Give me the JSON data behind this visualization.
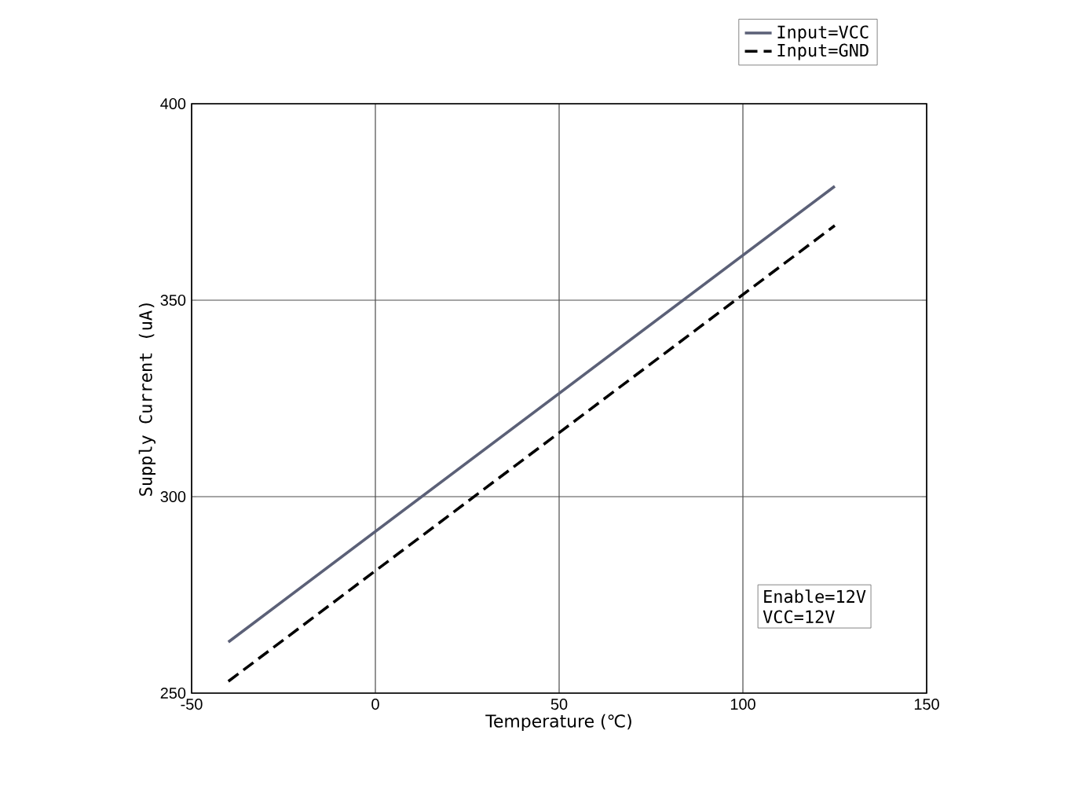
{
  "chart_data": {
    "type": "line",
    "xlabel": "Temperature (℃)",
    "ylabel": "Supply Current (uA)",
    "x": [
      -40,
      125
    ],
    "series": [
      {
        "name": "Input=VCC",
        "color": "#5b6077",
        "line_style": "solid",
        "values": [
          263,
          379
        ]
      },
      {
        "name": "Input=GND",
        "color": "#000000",
        "line_style": "dashed",
        "values": [
          253,
          369
        ]
      }
    ],
    "xlim": [
      -50,
      150
    ],
    "xticks": [
      -50,
      0,
      50,
      100,
      150
    ],
    "ylim": [
      250,
      400
    ],
    "yticks": [
      250,
      300,
      350,
      400
    ],
    "grid": true,
    "legend": "top right",
    "marker": "none",
    "annotations": [
      "Enable=12V",
      "VCC=12V"
    ]
  }
}
